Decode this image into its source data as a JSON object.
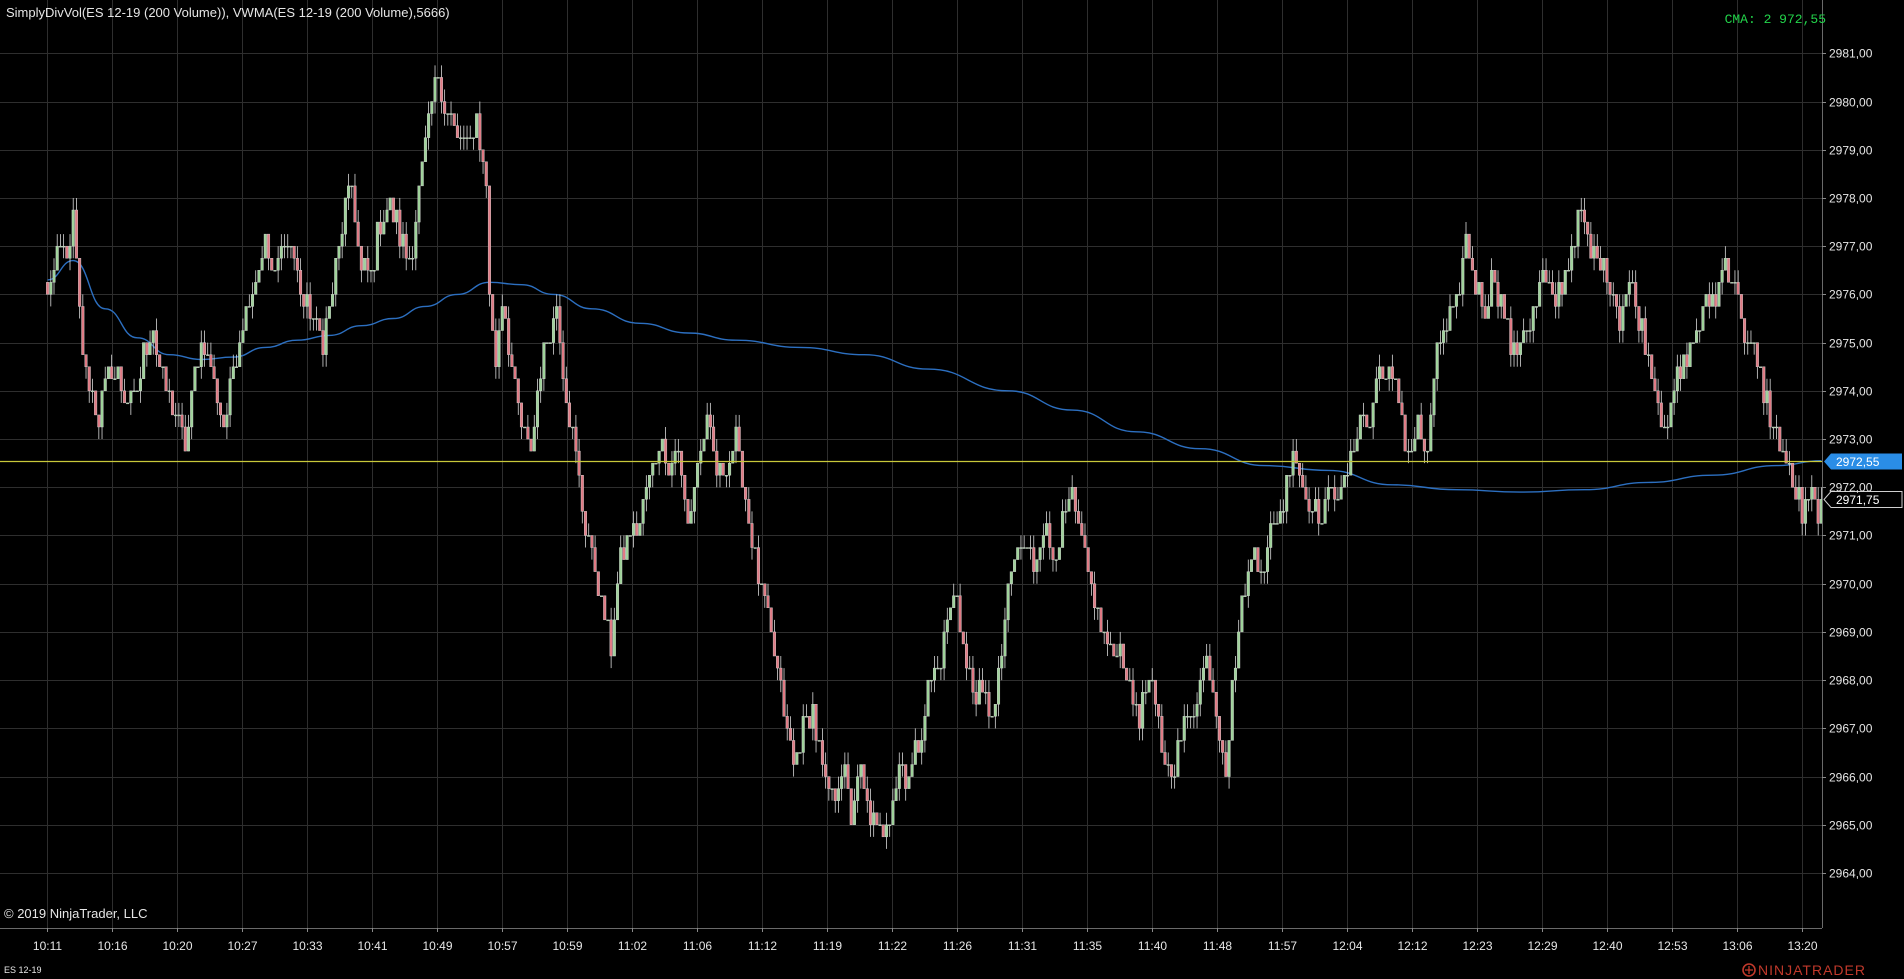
{
  "header": {
    "indicator_title": "SimplyDivVol(ES 12-19 (200 Volume)), VWMA(ES 12-19 (200 Volume),5666)",
    "cma_label": "CMA: 2 972,55"
  },
  "footer": {
    "copyright": "© 2019 NinjaTrader, LLC",
    "instrument": "ES 12-19",
    "brand": "NINJATRADER"
  },
  "colors": {
    "background": "#000000",
    "grid": "#2e2e2e",
    "up_candle": "#9fd39a",
    "down_candle": "#e07a84",
    "wick": "#d8d8d8",
    "vwma_line": "#2c6fc0",
    "cma_line": "#c8c83a",
    "cma_text": "#22d34a",
    "cma_tag": "#2a8de6",
    "last_price_tag": "#000000"
  },
  "chart_data": {
    "type": "candlestick",
    "instrument": "ES 12-19",
    "bar_type": "200 Volume",
    "ylim": [
      2963.15,
      2981.4
    ],
    "y_ticks": [
      "2964,00",
      "2965,00",
      "2966,00",
      "2967,00",
      "2968,00",
      "2969,00",
      "2970,00",
      "2971,00",
      "2972,00",
      "2973,00",
      "2974,00",
      "2975,00",
      "2976,00",
      "2977,00",
      "2978,00",
      "2979,00",
      "2980,00",
      "2981,00"
    ],
    "x_ticks": [
      "10:11",
      "10:16",
      "10:20",
      "10:27",
      "10:33",
      "10:41",
      "10:49",
      "10:57",
      "10:59",
      "11:02",
      "11:06",
      "11:12",
      "11:19",
      "11:22",
      "11:26",
      "11:31",
      "11:35",
      "11:40",
      "11:48",
      "11:57",
      "12:04",
      "12:12",
      "12:23",
      "12:29",
      "12:40",
      "12:53",
      "13:06",
      "13:20"
    ],
    "close_path_knots": [
      [
        0,
        2976.0
      ],
      [
        4,
        2977.0
      ],
      [
        7,
        2976.75
      ],
      [
        8,
        2977.75
      ],
      [
        10,
        2975.5
      ],
      [
        12,
        2974.25
      ],
      [
        16,
        2973.5
      ],
      [
        20,
        2974.5
      ],
      [
        24,
        2974.0
      ],
      [
        27,
        2973.75
      ],
      [
        30,
        2974.75
      ],
      [
        33,
        2975.25
      ],
      [
        36,
        2974.25
      ],
      [
        40,
        2973.5
      ],
      [
        43,
        2972.75
      ],
      [
        46,
        2974.5
      ],
      [
        49,
        2975.0
      ],
      [
        52,
        2974.25
      ],
      [
        55,
        2973.25
      ],
      [
        58,
        2974.5
      ],
      [
        61,
        2975.5
      ],
      [
        64,
        2976.25
      ],
      [
        68,
        2977.0
      ],
      [
        71,
        2976.25
      ],
      [
        74,
        2977.25
      ],
      [
        77,
        2976.75
      ],
      [
        80,
        2975.75
      ],
      [
        83,
        2975.5
      ],
      [
        86,
        2975.0
      ],
      [
        89,
        2976.0
      ],
      [
        92,
        2977.5
      ],
      [
        95,
        2978.25
      ],
      [
        98,
        2976.5
      ],
      [
        101,
        2976.5
      ],
      [
        104,
        2977.5
      ],
      [
        107,
        2977.75
      ],
      [
        110,
        2977.25
      ],
      [
        113,
        2976.75
      ],
      [
        116,
        2978.0
      ],
      [
        119,
        2979.5
      ],
      [
        122,
        2980.5
      ],
      [
        125,
        2979.75
      ],
      [
        128,
        2979.25
      ],
      [
        131,
        2979.0
      ],
      [
        134,
        2979.75
      ],
      [
        137,
        2978.25
      ],
      [
        138,
        2976.0
      ],
      [
        140,
        2974.5
      ],
      [
        142,
        2976.0
      ],
      [
        145,
        2974.5
      ],
      [
        148,
        2973.25
      ],
      [
        151,
        2972.75
      ],
      [
        154,
        2974.5
      ],
      [
        157,
        2975.25
      ],
      [
        159,
        2975.75
      ],
      [
        162,
        2974.0
      ],
      [
        165,
        2972.5
      ],
      [
        168,
        2971.25
      ],
      [
        171,
        2970.25
      ],
      [
        174,
        2969.25
      ],
      [
        176,
        2968.75
      ],
      [
        179,
        2970.5
      ],
      [
        182,
        2971.0
      ],
      [
        185,
        2971.25
      ],
      [
        188,
        2972.25
      ],
      [
        191,
        2973.0
      ],
      [
        194,
        2972.5
      ],
      [
        197,
        2972.75
      ],
      [
        200,
        2971.25
      ],
      [
        203,
        2972.5
      ],
      [
        206,
        2973.25
      ],
      [
        209,
        2972.25
      ],
      [
        212,
        2972.5
      ],
      [
        215,
        2973.0
      ],
      [
        218,
        2971.75
      ],
      [
        221,
        2970.5
      ],
      [
        224,
        2969.5
      ],
      [
        227,
        2968.5
      ],
      [
        230,
        2967.25
      ],
      [
        233,
        2966.25
      ],
      [
        236,
        2967.0
      ],
      [
        239,
        2967.5
      ],
      [
        242,
        2966.0
      ],
      [
        245,
        2965.5
      ],
      [
        248,
        2966.25
      ],
      [
        251,
        2965.25
      ],
      [
        254,
        2966.0
      ],
      [
        257,
        2965.25
      ],
      [
        260,
        2964.75
      ],
      [
        263,
        2965.25
      ],
      [
        266,
        2966.25
      ],
      [
        269,
        2966.0
      ],
      [
        272,
        2966.75
      ],
      [
        275,
        2967.75
      ],
      [
        278,
        2968.25
      ],
      [
        281,
        2969.25
      ],
      [
        284,
        2969.75
      ],
      [
        287,
        2968.25
      ],
      [
        290,
        2967.75
      ],
      [
        293,
        2967.5
      ],
      [
        296,
        2967.5
      ],
      [
        299,
        2969.25
      ],
      [
        302,
        2970.5
      ],
      [
        305,
        2970.75
      ],
      [
        308,
        2970.5
      ],
      [
        311,
        2971.25
      ],
      [
        314,
        2970.5
      ],
      [
        317,
        2971.25
      ],
      [
        320,
        2971.75
      ],
      [
        323,
        2970.75
      ],
      [
        326,
        2970.0
      ],
      [
        329,
        2969.0
      ],
      [
        332,
        2968.5
      ],
      [
        335,
        2968.75
      ],
      [
        338,
        2967.75
      ],
      [
        341,
        2967.25
      ],
      [
        344,
        2968.0
      ],
      [
        347,
        2967.0
      ],
      [
        350,
        2966.0
      ],
      [
        353,
        2966.5
      ],
      [
        356,
        2967.25
      ],
      [
        359,
        2967.75
      ],
      [
        362,
        2968.5
      ],
      [
        365,
        2967.5
      ],
      [
        368,
        2966.25
      ],
      [
        371,
        2968.5
      ],
      [
        374,
        2970.0
      ],
      [
        377,
        2970.75
      ],
      [
        380,
        2970.5
      ],
      [
        383,
        2971.25
      ],
      [
        386,
        2971.75
      ],
      [
        389,
        2973.0
      ],
      [
        392,
        2972.0
      ],
      [
        395,
        2971.75
      ],
      [
        398,
        2971.25
      ],
      [
        401,
        2972.25
      ],
      [
        404,
        2971.75
      ],
      [
        407,
        2972.5
      ],
      [
        410,
        2973.5
      ],
      [
        413,
        2973.25
      ],
      [
        416,
        2974.5
      ],
      [
        419,
        2974.25
      ],
      [
        422,
        2973.75
      ],
      [
        425,
        2972.75
      ],
      [
        428,
        2973.25
      ],
      [
        431,
        2972.5
      ],
      [
        434,
        2975.0
      ],
      [
        437,
        2975.25
      ],
      [
        440,
        2975.75
      ],
      [
        443,
        2977.0
      ],
      [
        446,
        2976.25
      ],
      [
        449,
        2975.75
      ],
      [
        452,
        2976.5
      ],
      [
        455,
        2975.5
      ],
      [
        458,
        2974.75
      ],
      [
        461,
        2975.25
      ],
      [
        464,
        2975.5
      ],
      [
        467,
        2976.5
      ],
      [
        470,
        2975.75
      ],
      [
        473,
        2976.25
      ],
      [
        476,
        2977.0
      ],
      [
        479,
        2977.75
      ],
      [
        482,
        2976.75
      ],
      [
        485,
        2976.75
      ],
      [
        488,
        2976.25
      ],
      [
        491,
        2975.5
      ],
      [
        494,
        2976.25
      ],
      [
        497,
        2975.5
      ],
      [
        500,
        2974.75
      ],
      [
        503,
        2973.75
      ],
      [
        506,
        2973.25
      ],
      [
        509,
        2974.25
      ],
      [
        512,
        2974.75
      ],
      [
        515,
        2975.25
      ],
      [
        518,
        2975.75
      ],
      [
        521,
        2976.0
      ],
      [
        524,
        2976.75
      ],
      [
        527,
        2976.25
      ],
      [
        530,
        2975.25
      ],
      [
        533,
        2974.75
      ],
      [
        536,
        2974.0
      ],
      [
        539,
        2973.25
      ],
      [
        542,
        2972.75
      ],
      [
        545,
        2972.0
      ],
      [
        548,
        2971.5
      ],
      [
        551,
        2971.75
      ],
      [
        554,
        2971.5
      ]
    ],
    "bar_count": 555,
    "series": [
      {
        "name": "VWMA(ES 12-19 (200 Volume),5666)",
        "x_index": [
          0,
          8,
          18,
          28,
          38,
          48,
          58,
          68,
          78,
          88,
          98,
          108,
          118,
          128,
          138,
          148,
          158,
          170,
          185,
          200,
          215,
          235,
          255,
          275,
          300,
          320,
          340,
          360,
          380,
          400,
          420,
          440,
          460,
          480,
          500,
          520,
          540,
          554
        ],
        "values": [
          2976.3,
          2976.7,
          2975.7,
          2975.1,
          2974.75,
          2974.65,
          2974.7,
          2974.9,
          2975.05,
          2975.15,
          2975.35,
          2975.5,
          2975.75,
          2976.0,
          2976.25,
          2976.2,
          2976.0,
          2975.7,
          2975.4,
          2975.2,
          2975.05,
          2974.9,
          2974.75,
          2974.45,
          2974.0,
          2973.6,
          2973.15,
          2972.8,
          2972.45,
          2972.35,
          2972.05,
          2971.95,
          2971.9,
          2971.95,
          2972.1,
          2972.25,
          2972.45,
          2972.55
        ]
      }
    ],
    "cma_value": 2972.55,
    "cma_tag": "2972,55",
    "last_price": 2971.75,
    "last_price_tag": "2971,75",
    "grid": true
  }
}
